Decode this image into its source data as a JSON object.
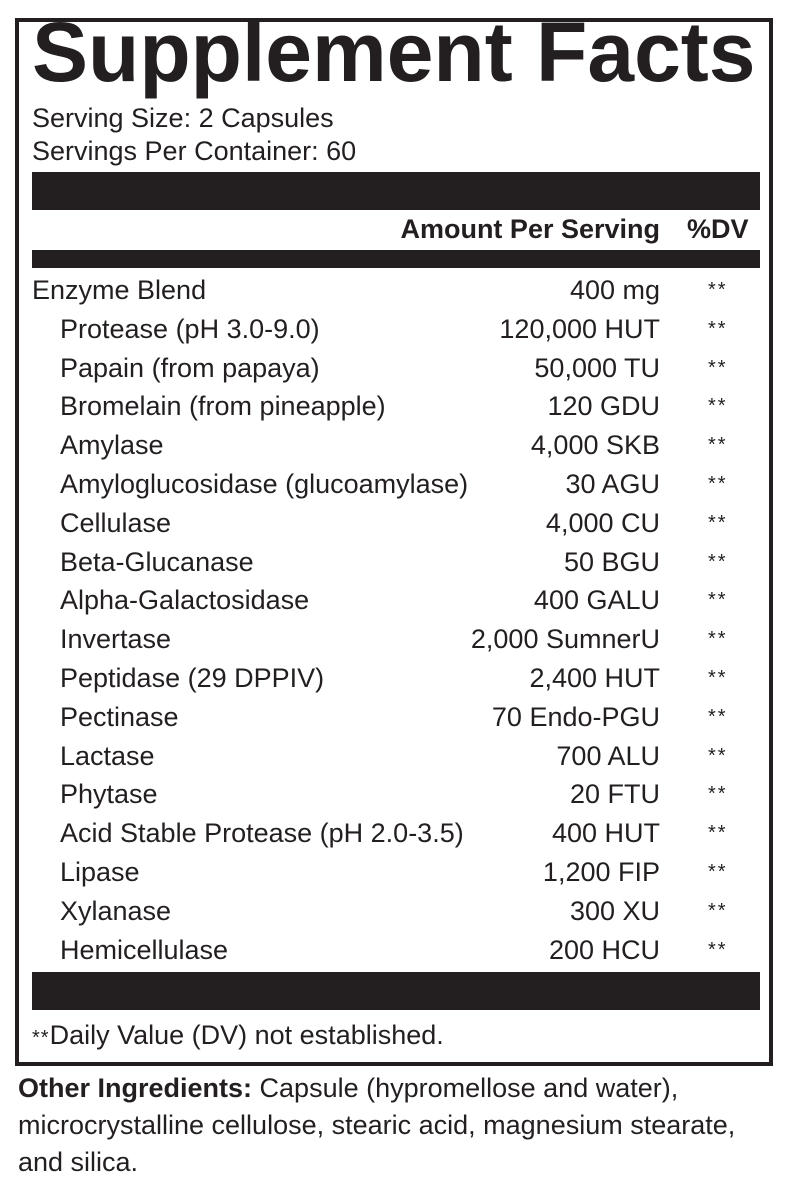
{
  "title": "Supplement Facts",
  "serving_size": "Serving Size: 2 Capsules",
  "servings_per_container": "Servings Per Container: 60",
  "header": {
    "amount": "Amount Per Serving",
    "dv": "%DV"
  },
  "rows": [
    {
      "name": "Enzyme Blend",
      "amount": "400 mg",
      "dv": "**"
    },
    {
      "name": "Protease (pH 3.0-9.0)",
      "amount": "120,000 HUT",
      "dv": "**"
    },
    {
      "name": "Papain (from papaya)",
      "amount": "50,000 TU",
      "dv": "**"
    },
    {
      "name": "Bromelain (from pineapple)",
      "amount": "120 GDU",
      "dv": "**"
    },
    {
      "name": "Amylase",
      "amount": "4,000 SKB",
      "dv": "**"
    },
    {
      "name": "Amyloglucosidase (glucoamylase)",
      "amount": "30 AGU",
      "dv": "**"
    },
    {
      "name": "Cellulase",
      "amount": "4,000 CU",
      "dv": "**"
    },
    {
      "name": "Beta-Glucanase",
      "amount": "50 BGU",
      "dv": "**"
    },
    {
      "name": "Alpha-Galactosidase",
      "amount": "400 GALU",
      "dv": "**"
    },
    {
      "name": "Invertase",
      "amount": "2,000 SumnerU",
      "dv": "**"
    },
    {
      "name": "Peptidase (29 DPPIV)",
      "amount": "2,400 HUT",
      "dv": "**"
    },
    {
      "name": "Pectinase",
      "amount": "70 Endo-PGU",
      "dv": "**"
    },
    {
      "name": "Lactase",
      "amount": "700 ALU",
      "dv": "**"
    },
    {
      "name": "Phytase",
      "amount": "20 FTU",
      "dv": "**"
    },
    {
      "name": "Acid Stable Protease (pH 2.0-3.5)",
      "amount": "400 HUT",
      "dv": "**"
    },
    {
      "name": "Lipase",
      "amount": "1,200 FIP",
      "dv": "**"
    },
    {
      "name": "Xylanase",
      "amount": "300 XU",
      "dv": "**"
    },
    {
      "name": "Hemicellulase",
      "amount": "200 HCU",
      "dv": "**"
    }
  ],
  "footnote": {
    "marker": "**",
    "text": "Daily Value (DV) not established."
  },
  "other_ingredients": {
    "label": "Other Ingredients:",
    "text": " Capsule (hypromellose and water), microcrystalline cellulose, stearic acid, magnesium stearate, and silica."
  },
  "colors": {
    "ink": "#231f20",
    "background": "#ffffff"
  }
}
